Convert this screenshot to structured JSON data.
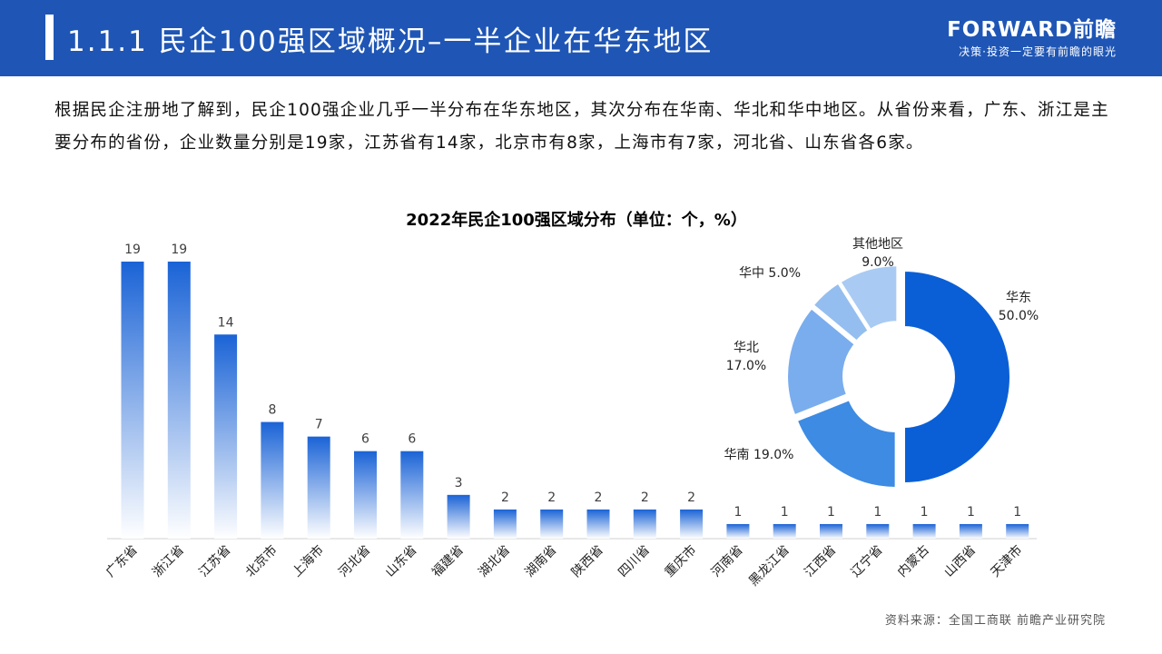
{
  "header": {
    "title": "1.1.1 民企100强区域概况–一半企业在华东地区",
    "brand_logo": "FORWARD前瞻",
    "brand_tagline": "决策·投资一定要有前瞻的眼光"
  },
  "intro": "根据民企注册地了解到，民企100强企业几乎一半分布在华东地区，其次分布在华南、华北和华中地区。从省份来看，广东、浙江是主要分布的省份，企业数量分别是19家，江苏省有14家，北京市有8家，上海市有7家，河北省、山东省各6家。",
  "source": "资料来源：全国工商联  前瞻产业研究院",
  "colors": {
    "header": "#1f56b5",
    "bar_top": "#1a63d6",
    "bar_bottom": "#ffffff"
  },
  "chart_data": [
    {
      "type": "bar",
      "title": "2022年民企100强区域分布（单位：个，%）",
      "categories": [
        "广东省",
        "浙江省",
        "江苏省",
        "北京市",
        "上海市",
        "河北省",
        "山东省",
        "福建省",
        "湖北省",
        "湖南省",
        "陕西省",
        "四川省",
        "重庆市",
        "河南省",
        "黑龙江省",
        "江西省",
        "辽宁省",
        "内蒙古",
        "山西省",
        "天津市"
      ],
      "values": [
        19,
        19,
        14,
        8,
        7,
        6,
        6,
        3,
        2,
        2,
        2,
        2,
        2,
        1,
        1,
        1,
        1,
        1,
        1,
        1
      ],
      "ylim": [
        0,
        19
      ]
    },
    {
      "type": "pie",
      "slices": [
        {
          "label": "华东",
          "value": 50.0,
          "value_label": "50.0%",
          "color": "#0a5fd6"
        },
        {
          "label": "华南",
          "value": 19.0,
          "value_label": "19.0%",
          "color": "#3d8be3"
        },
        {
          "label": "华北",
          "value": 17.0,
          "value_label": "17.0%",
          "color": "#79adee"
        },
        {
          "label": "华中",
          "value": 5.0,
          "value_label": "5.0%",
          "color": "#94beef"
        },
        {
          "label": "其他地区",
          "value": 9.0,
          "value_label": "9.0%",
          "color": "#a9cbf3"
        }
      ]
    }
  ]
}
